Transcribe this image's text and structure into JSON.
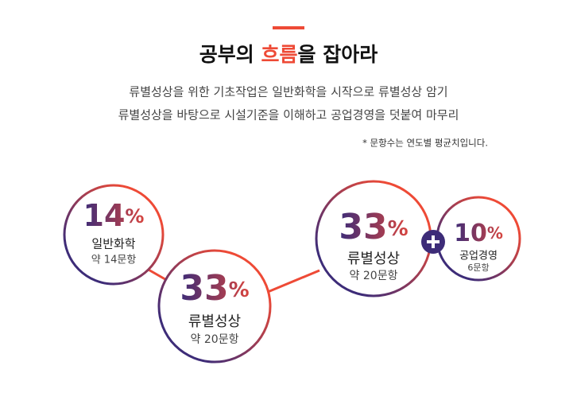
{
  "header": {
    "title": [
      "공부의 ",
      "흐름",
      "을 잡아라"
    ],
    "description": [
      "류별성상을 위한 기초작업은 일반화학을 시작으로 류별성상 암기",
      "류별성상을 바탕으로 시설기준을 이해하고 공업경영을 덧붙여 마무리"
    ],
    "note": "* 문항수는 연도별 평균치입니다."
  },
  "steps": [
    {
      "percent": "14",
      "unit": "%",
      "label": "일반화학",
      "count": "약 14문항"
    },
    {
      "percent": "33",
      "unit": "%",
      "label": "류별성상",
      "count": "약 20문항"
    },
    {
      "percent": "33",
      "unit": "%",
      "label": "류별성상",
      "count": "약 20문항"
    },
    {
      "percent": "10",
      "unit": "%",
      "label": "공업경영",
      "count": "6문항"
    }
  ]
}
